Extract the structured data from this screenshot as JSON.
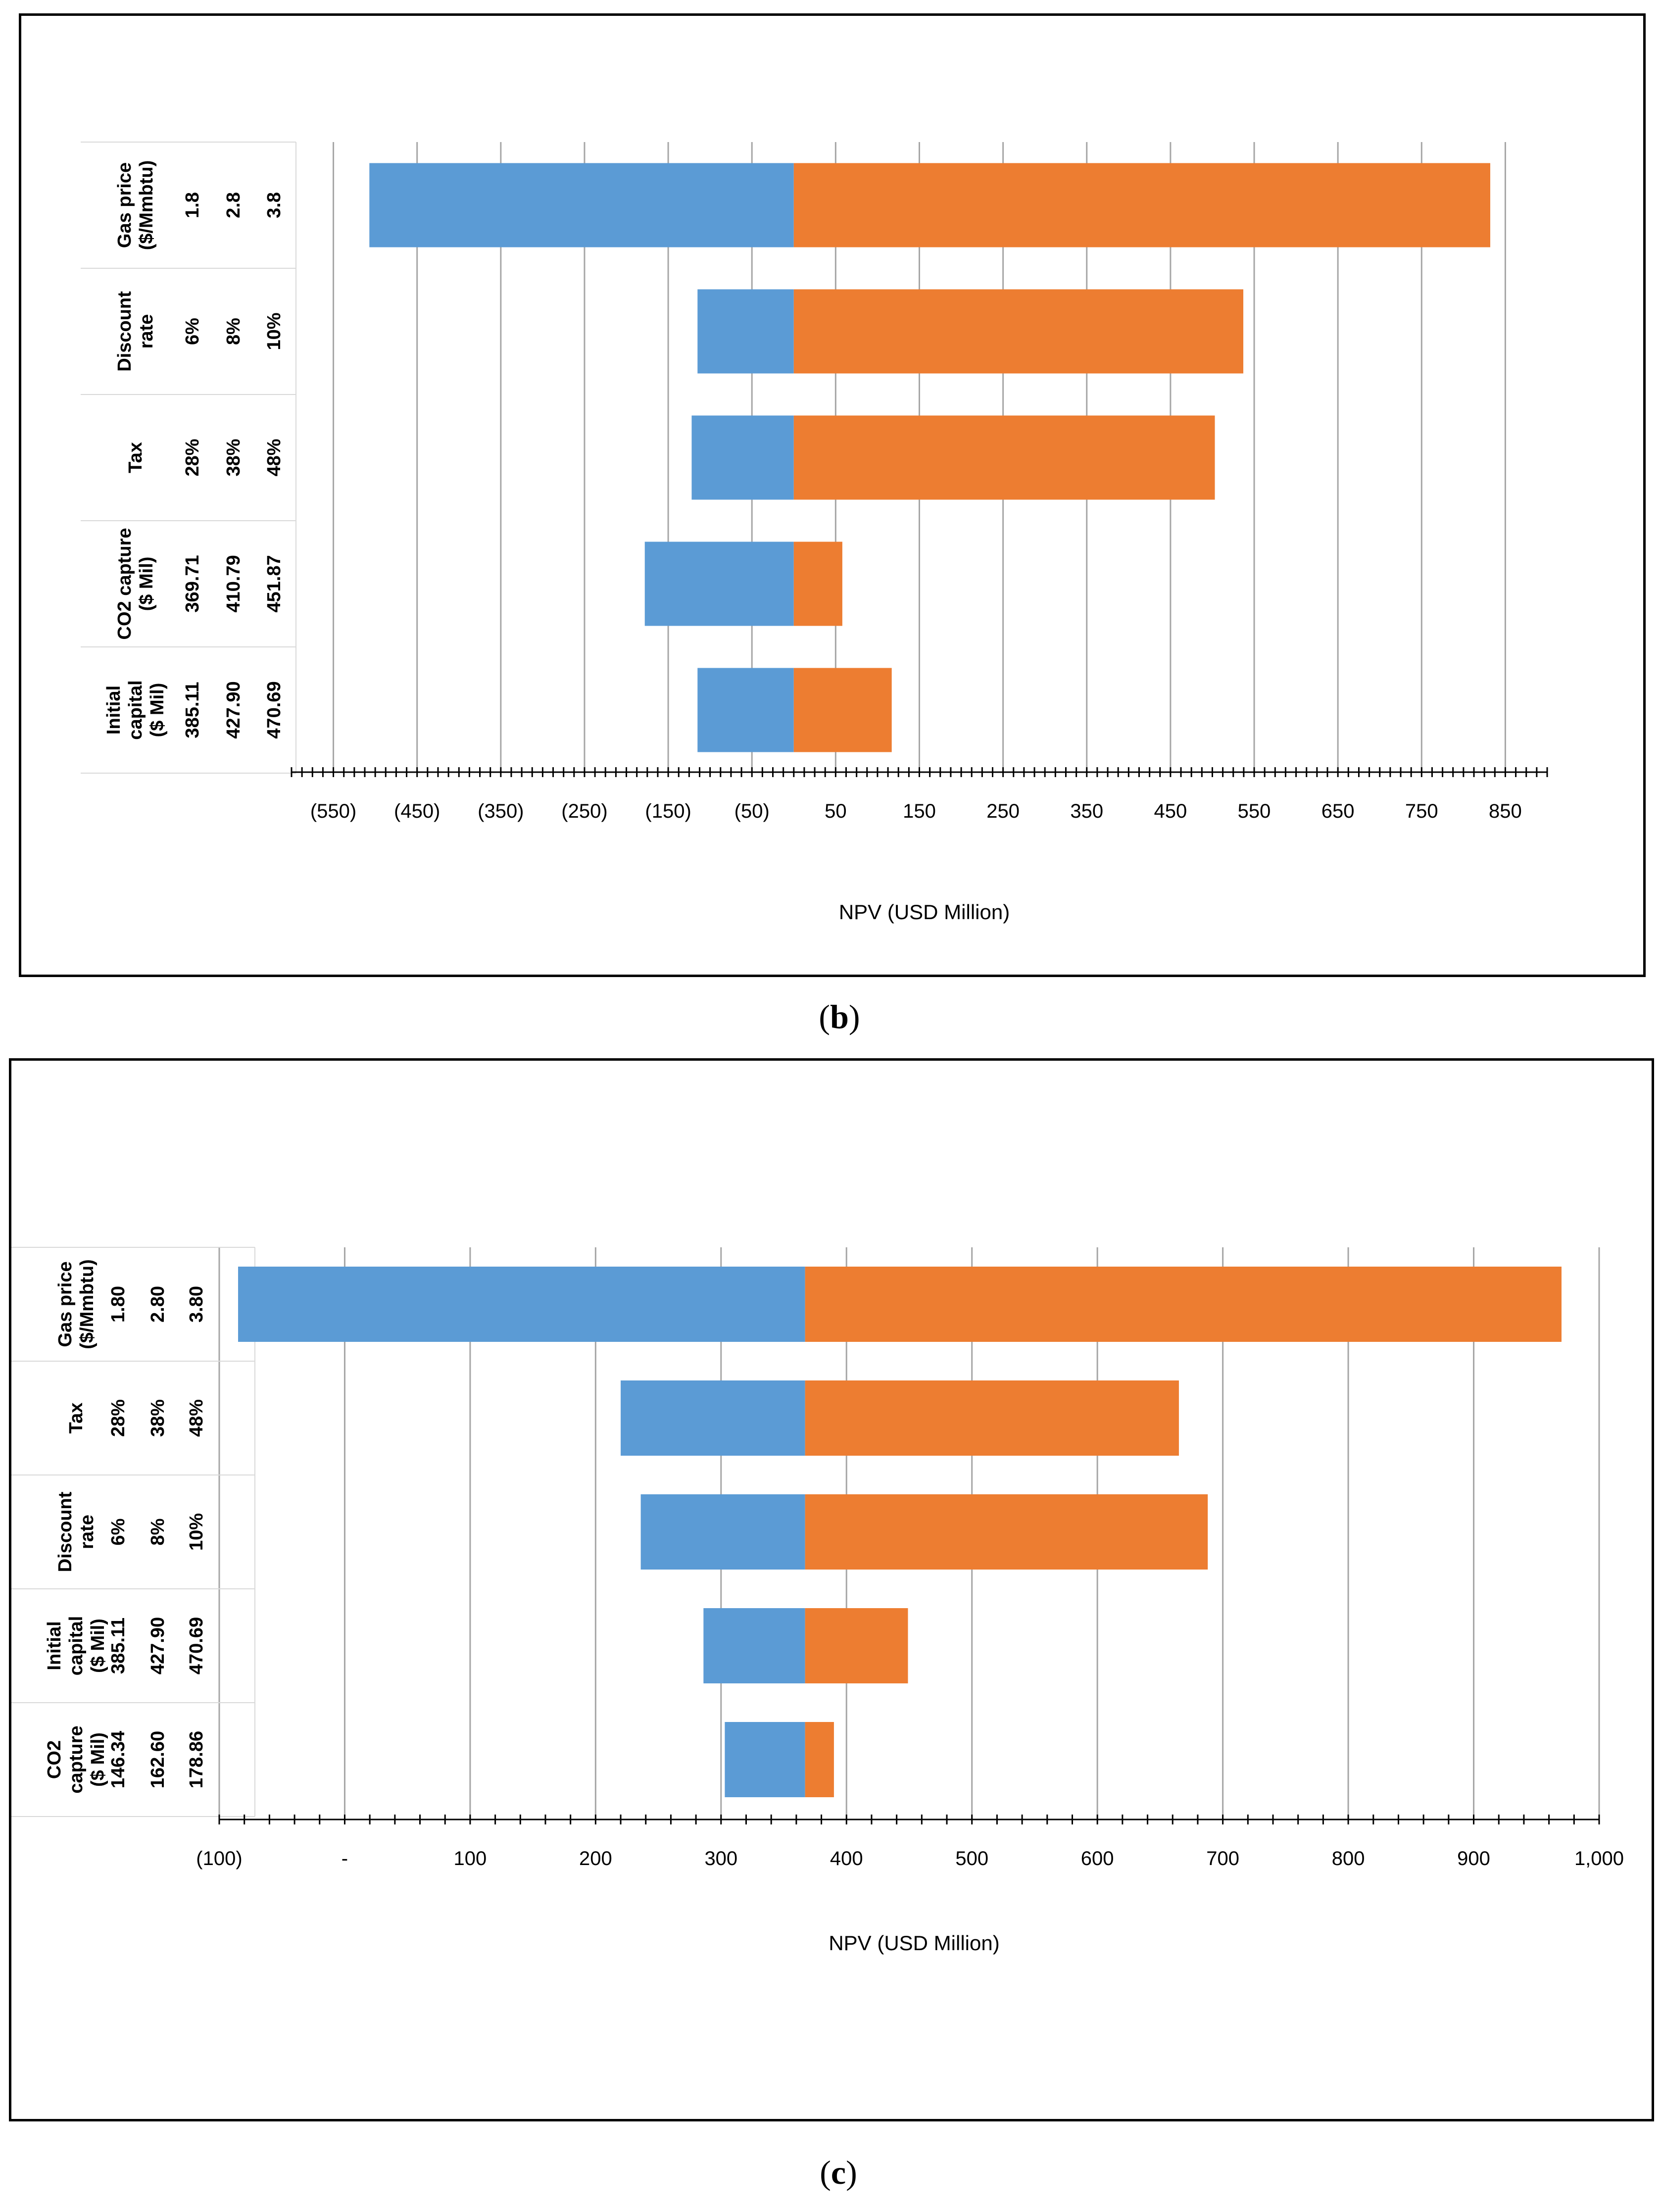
{
  "chart_data": [
    {
      "id": "b",
      "type": "bar",
      "subtype": "tornado",
      "caption": "b",
      "xlabel": "NPV (USD Million)",
      "xlim": [
        -600,
        900
      ],
      "base_value": 0,
      "tick_values": [
        -550,
        -450,
        -350,
        -250,
        -150,
        -50,
        50,
        150,
        250,
        350,
        450,
        550,
        650,
        750,
        850
      ],
      "tick_labels": [
        "(550)",
        "(450)",
        "(350)",
        "(250)",
        "(150)",
        "(50)",
        "50",
        "150",
        "250",
        "350",
        "450",
        "550",
        "650",
        "750",
        "850"
      ],
      "minor_tick_step": 12.5,
      "categories": [
        {
          "name_lines": [
            "Gas price",
            "($/Mmbtu)"
          ],
          "values": [
            "1.8",
            "2.8",
            "3.8"
          ],
          "low": -507,
          "high": 832
        },
        {
          "name_lines": [
            "Discount",
            "rate"
          ],
          "values": [
            "6%",
            "8%",
            "10%"
          ],
          "low": -115,
          "high": 537
        },
        {
          "name_lines": [
            "Tax"
          ],
          "values": [
            "28%",
            "38%",
            "48%"
          ],
          "low": -122,
          "high": 503
        },
        {
          "name_lines": [
            "CO2 capture",
            "($ Mil)"
          ],
          "values": [
            "369.71",
            "410.79",
            "451.87"
          ],
          "low": -178,
          "high": 58
        },
        {
          "name_lines": [
            "Initial",
            "capital",
            "($ Mil)"
          ],
          "values": [
            "385.11",
            "427.90",
            "470.69"
          ],
          "low": -115,
          "high": 117
        }
      ],
      "colors": {
        "low": "#5B9BD5",
        "high": "#ED7D31",
        "grid": "#A6A6A6",
        "axis": "#000000"
      }
    },
    {
      "id": "c",
      "type": "bar",
      "subtype": "tornado",
      "caption": "c",
      "xlabel": "NPV (USD Million)",
      "xlim": [
        -100,
        1000
      ],
      "base_value": 367,
      "tick_values": [
        -100,
        0,
        100,
        200,
        300,
        400,
        500,
        600,
        700,
        800,
        900,
        1000
      ],
      "tick_labels": [
        "(100)",
        "-",
        "100",
        "200",
        "300",
        "400",
        "500",
        "600",
        "700",
        "800",
        "900",
        "1,000"
      ],
      "minor_tick_step": 20,
      "categories": [
        {
          "name_lines": [
            "Gas price",
            "($/Mmbtu)"
          ],
          "values": [
            "1.80",
            "2.80",
            "3.80"
          ],
          "low": -85,
          "high": 970
        },
        {
          "name_lines": [
            "Tax"
          ],
          "values": [
            "28%",
            "38%",
            "48%"
          ],
          "low": 220,
          "high": 665
        },
        {
          "name_lines": [
            "Discount",
            "rate"
          ],
          "values": [
            "6%",
            "8%",
            "10%"
          ],
          "low": 236,
          "high": 688
        },
        {
          "name_lines": [
            "Initial",
            "capital",
            "($ Mil)"
          ],
          "values": [
            "385.11",
            "427.90",
            "470.69"
          ],
          "low": 286,
          "high": 449
        },
        {
          "name_lines": [
            "CO2",
            "capture",
            "($ Mil)"
          ],
          "values": [
            "146.34",
            "162.60",
            "178.86"
          ],
          "low": 303,
          "high": 390
        }
      ],
      "colors": {
        "low": "#5B9BD5",
        "high": "#ED7D31",
        "grid": "#A6A6A6",
        "axis": "#000000"
      }
    }
  ]
}
